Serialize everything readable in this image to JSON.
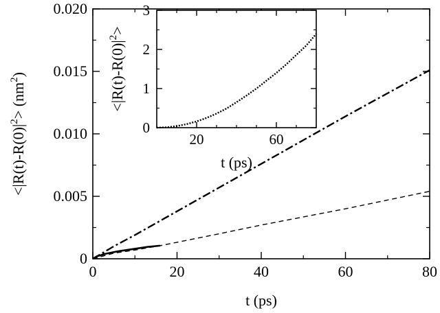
{
  "chart_data": [
    {
      "type": "line",
      "xlabel": "t (ps)",
      "ylabel": "<|R(t)-R(0)|",
      "ylabel_exp": "2",
      "ylabel_suffix": "> (nm",
      "ylabel_unit_exp": "2",
      "ylabel_close": ")",
      "xlim": [
        0,
        80
      ],
      "ylim": [
        0,
        0.02
      ],
      "xticks": [
        0,
        20,
        40,
        60,
        80
      ],
      "xtick_labels": [
        "0",
        "20",
        "40",
        "60",
        "80"
      ],
      "yticks": [
        0,
        0.005,
        0.01,
        0.015,
        0.02
      ],
      "ytick_labels": [
        "0",
        "0.005",
        "0.010",
        "0.015",
        "0.020"
      ],
      "grid": false,
      "series": [
        {
          "style": "dash-dot",
          "color": "#000000",
          "x": [
            0,
            2,
            5,
            10,
            20,
            40,
            60,
            80
          ],
          "y": [
            0,
            0.0004,
            0.001,
            0.0019,
            0.0038,
            0.0076,
            0.0114,
            0.0151
          ]
        },
        {
          "style": "dashed",
          "color": "#000000",
          "x": [
            0,
            5,
            10,
            16,
            30,
            40,
            60,
            80
          ],
          "y": [
            0,
            0.00045,
            0.0007,
            0.00105,
            0.002,
            0.0027,
            0.004,
            0.0054
          ]
        },
        {
          "style": "solid",
          "color": "#000000",
          "x": [
            0,
            1,
            3,
            6,
            10,
            13,
            16
          ],
          "y": [
            0,
            0.0002,
            0.0004,
            0.0006,
            0.0008,
            0.00095,
            0.00105
          ]
        }
      ]
    },
    {
      "type": "line",
      "xlabel": "t (ps)",
      "ylabel": "<|R(t)-R(0)|",
      "ylabel_exp": "2",
      "ylabel_suffix": ">",
      "xlim": [
        0,
        80
      ],
      "ylim": [
        0,
        3
      ],
      "xticks": [
        20,
        60
      ],
      "xtick_labels": [
        "20",
        "60"
      ],
      "yticks": [
        0,
        1,
        2,
        3
      ],
      "ytick_labels": [
        "0",
        "1",
        "2",
        "3"
      ],
      "grid": false,
      "series": [
        {
          "style": "dotted",
          "color": "#000000",
          "x": [
            0,
            5,
            10,
            15,
            20,
            25,
            30,
            35,
            40,
            45,
            50,
            55,
            60,
            65,
            70,
            75,
            80
          ],
          "y": [
            0.0,
            0.01,
            0.04,
            0.09,
            0.16,
            0.25,
            0.36,
            0.49,
            0.65,
            0.82,
            1.0,
            1.2,
            1.4,
            1.62,
            1.86,
            2.1,
            2.4
          ]
        }
      ]
    }
  ]
}
